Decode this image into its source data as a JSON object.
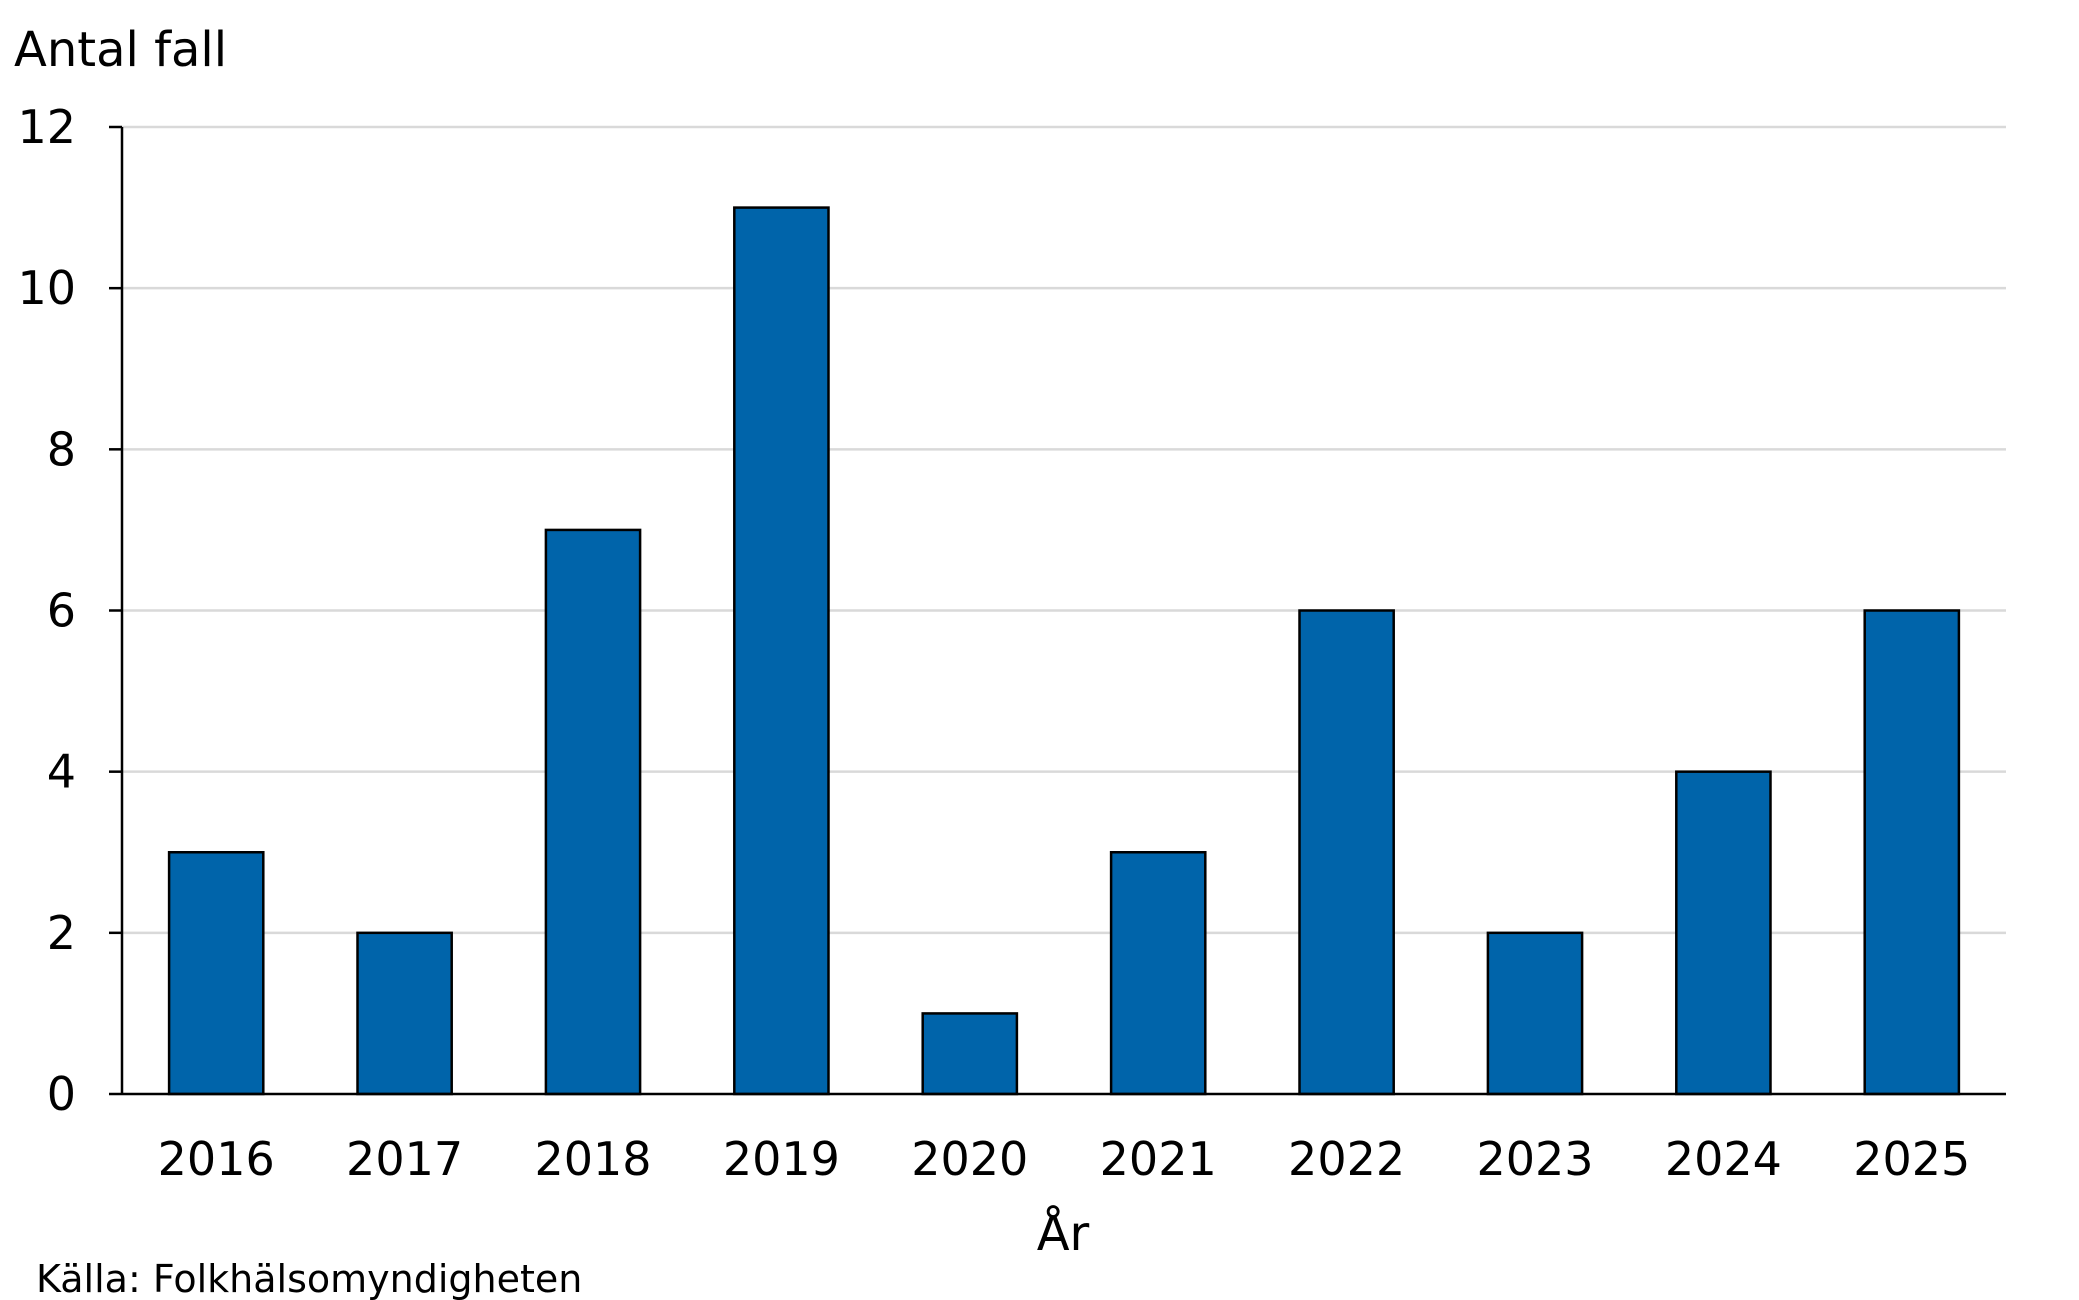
{
  "chart_data": {
    "type": "bar",
    "ylabel": "Antal fall",
    "xlabel": "År",
    "categories": [
      "2016",
      "2017",
      "2018",
      "2019",
      "2020",
      "2021",
      "2022",
      "2023",
      "2024",
      "2025"
    ],
    "values": [
      3,
      2,
      7,
      11,
      1,
      3,
      6,
      2,
      4,
      6
    ],
    "ylim": [
      0,
      12
    ],
    "yticks": [
      "0",
      "2",
      "4",
      "6",
      "8",
      "10",
      "12"
    ],
    "grid": true,
    "bar_color": "#0064AA",
    "source": "Källa: Folkhälsomyndigheten"
  }
}
